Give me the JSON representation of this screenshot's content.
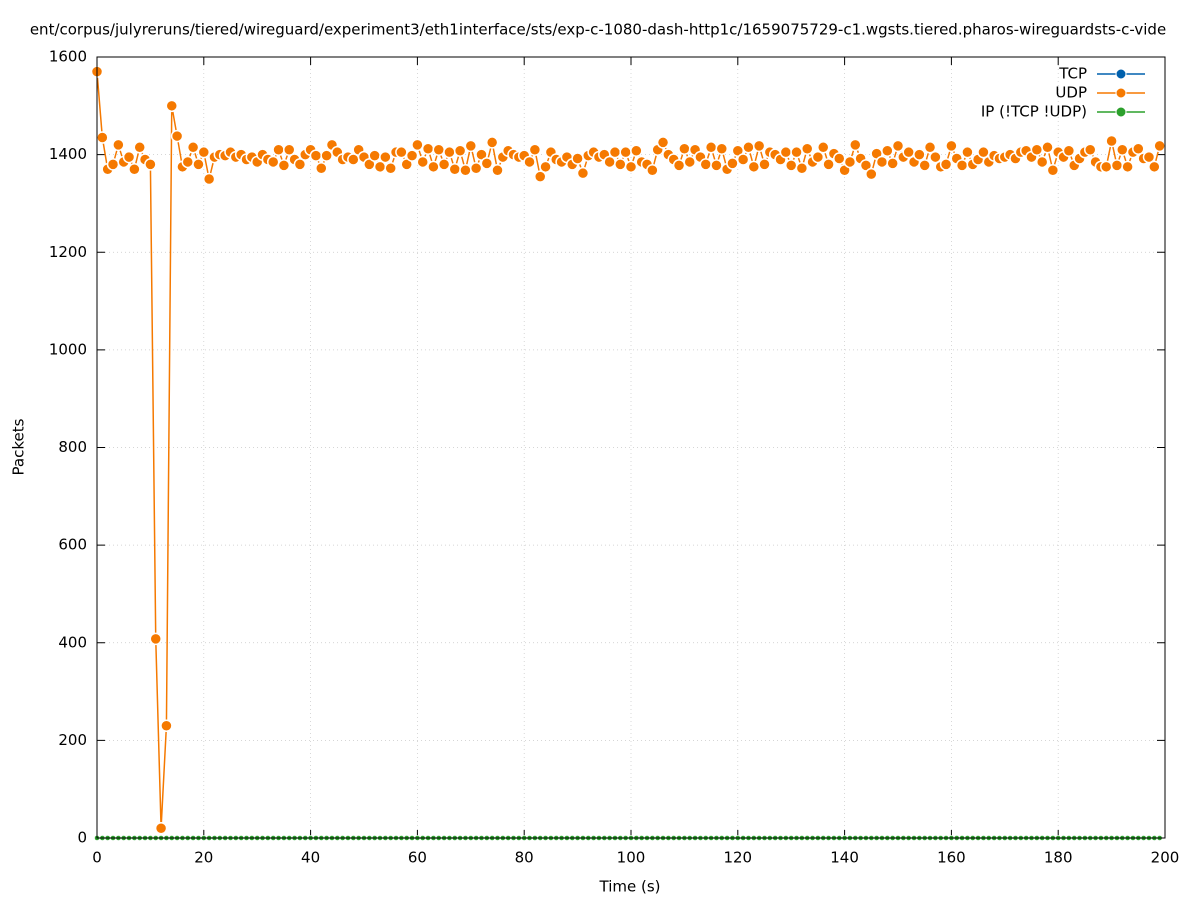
{
  "chart_data": {
    "type": "line",
    "title": "ent/corpus/julyreruns/tiered/wireguard/experiment3/eth1interface/sts/exp-c-1080-dash-http1c/1659075729-c1.wgsts.tiered.pharos-wireguardsts-c-vide",
    "xlabel": "Time (s)",
    "ylabel": "Packets",
    "xlim": [
      0,
      200
    ],
    "xticks": [
      0,
      20,
      40,
      60,
      80,
      100,
      120,
      140,
      160,
      180,
      200
    ],
    "ylim": [
      0,
      1600
    ],
    "yticks": [
      0,
      200,
      400,
      600,
      800,
      1000,
      1200,
      1400,
      1600
    ],
    "grid": true,
    "legend": "top-right",
    "x": [
      0,
      1,
      2,
      3,
      4,
      5,
      6,
      7,
      8,
      9,
      10,
      11,
      12,
      13,
      14,
      15,
      16,
      17,
      18,
      19,
      20,
      21,
      22,
      23,
      24,
      25,
      26,
      27,
      28,
      29,
      30,
      31,
      32,
      33,
      34,
      35,
      36,
      37,
      38,
      39,
      40,
      41,
      42,
      43,
      44,
      45,
      46,
      47,
      48,
      49,
      50,
      51,
      52,
      53,
      54,
      55,
      56,
      57,
      58,
      59,
      60,
      61,
      62,
      63,
      64,
      65,
      66,
      67,
      68,
      69,
      70,
      71,
      72,
      73,
      74,
      75,
      76,
      77,
      78,
      79,
      80,
      81,
      82,
      83,
      84,
      85,
      86,
      87,
      88,
      89,
      90,
      91,
      92,
      93,
      94,
      95,
      96,
      97,
      98,
      99,
      100,
      101,
      102,
      103,
      104,
      105,
      106,
      107,
      108,
      109,
      110,
      111,
      112,
      113,
      114,
      115,
      116,
      117,
      118,
      119,
      120,
      121,
      122,
      123,
      124,
      125,
      126,
      127,
      128,
      129,
      130,
      131,
      132,
      133,
      134,
      135,
      136,
      137,
      138,
      139,
      140,
      141,
      142,
      143,
      144,
      145,
      146,
      147,
      148,
      149,
      150,
      151,
      152,
      153,
      154,
      155,
      156,
      157,
      158,
      159,
      160,
      161,
      162,
      163,
      164,
      165,
      166,
      167,
      168,
      169,
      170,
      171,
      172,
      173,
      174,
      175,
      176,
      177,
      178,
      179,
      180,
      181,
      182,
      183,
      184,
      185,
      186,
      187,
      188,
      189,
      190,
      191,
      192,
      193,
      194,
      195,
      196,
      197,
      198,
      199
    ],
    "series": [
      {
        "name": "TCP",
        "color": "#0060ad",
        "values": [
          0,
          0,
          0,
          0,
          0,
          0,
          0,
          0,
          0,
          0,
          0,
          0,
          0,
          0,
          0,
          0,
          0,
          0,
          0,
          0,
          0,
          0,
          0,
          0,
          0,
          0,
          0,
          0,
          0,
          0,
          0,
          0,
          0,
          0,
          0,
          0,
          0,
          0,
          0,
          0,
          0,
          0,
          0,
          0,
          0,
          0,
          0,
          0,
          0,
          0,
          0,
          0,
          0,
          0,
          0,
          0,
          0,
          0,
          0,
          0,
          0,
          0,
          0,
          0,
          0,
          0,
          0,
          0,
          0,
          0,
          0,
          0,
          0,
          0,
          0,
          0,
          0,
          0,
          0,
          0,
          0,
          0,
          0,
          0,
          0,
          0,
          0,
          0,
          0,
          0,
          0,
          0,
          0,
          0,
          0,
          0,
          0,
          0,
          0,
          0,
          0,
          0,
          0,
          0,
          0,
          0,
          0,
          0,
          0,
          0,
          0,
          0,
          0,
          0,
          0,
          0,
          0,
          0,
          0,
          0,
          0,
          0,
          0,
          0,
          0,
          0,
          0,
          0,
          0,
          0,
          0,
          0,
          0,
          0,
          0,
          0,
          0,
          0,
          0,
          0,
          0,
          0,
          0,
          0,
          0,
          0,
          0,
          0,
          0,
          0,
          0,
          0,
          0,
          0,
          0,
          0,
          0,
          0,
          0,
          0,
          0,
          0,
          0,
          0,
          0,
          0,
          0,
          0,
          0,
          0,
          0,
          0,
          0,
          0,
          0,
          0,
          0,
          0,
          0,
          0,
          0,
          0,
          0,
          0,
          0,
          0,
          0,
          0,
          0,
          0,
          0,
          0,
          0,
          0,
          0,
          0,
          0,
          0,
          0,
          0
        ]
      },
      {
        "name": "UDP",
        "color": "#f57900",
        "values": [
          1570,
          1435,
          1370,
          1380,
          1420,
          1385,
          1395,
          1370,
          1415,
          1390,
          1380,
          408,
          20,
          230,
          1500,
          1438,
          1375,
          1385,
          1415,
          1380,
          1405,
          1350,
          1395,
          1400,
          1398,
          1405,
          1395,
          1400,
          1390,
          1395,
          1385,
          1400,
          1390,
          1385,
          1410,
          1378,
          1410,
          1390,
          1380,
          1400,
          1410,
          1398,
          1372,
          1398,
          1420,
          1405,
          1390,
          1395,
          1390,
          1410,
          1395,
          1380,
          1398,
          1375,
          1395,
          1372,
          1405,
          1405,
          1380,
          1398,
          1420,
          1385,
          1412,
          1375,
          1410,
          1380,
          1405,
          1370,
          1408,
          1368,
          1418,
          1372,
          1400,
          1382,
          1425,
          1368,
          1395,
          1408,
          1400,
          1395,
          1398,
          1385,
          1410,
          1355,
          1375,
          1405,
          1390,
          1385,
          1395,
          1380,
          1392,
          1362,
          1398,
          1405,
          1395,
          1400,
          1385,
          1405,
          1380,
          1405,
          1375,
          1408,
          1385,
          1380,
          1368,
          1410,
          1425,
          1400,
          1390,
          1378,
          1412,
          1385,
          1410,
          1395,
          1380,
          1415,
          1378,
          1412,
          1370,
          1382,
          1408,
          1390,
          1415,
          1375,
          1418,
          1380,
          1405,
          1400,
          1390,
          1405,
          1378,
          1405,
          1372,
          1412,
          1385,
          1395,
          1415,
          1380,
          1402,
          1392,
          1368,
          1385,
          1420,
          1392,
          1378,
          1360,
          1402,
          1385,
          1408,
          1382,
          1418,
          1395,
          1405,
          1385,
          1400,
          1378,
          1415,
          1395,
          1375,
          1380,
          1418,
          1392,
          1378,
          1405,
          1380,
          1390,
          1405,
          1385,
          1398,
          1392,
          1395,
          1400,
          1392,
          1405,
          1408,
          1395,
          1410,
          1385,
          1415,
          1368,
          1405,
          1395,
          1408,
          1378,
          1392,
          1405,
          1410,
          1385,
          1375,
          1375,
          1428,
          1378,
          1410,
          1375,
          1405,
          1412,
          1392,
          1395,
          1375,
          1418
        ]
      },
      {
        "name": "IP (!TCP  !UDP)",
        "color": "#2ca02c",
        "values": [
          0,
          0,
          0,
          0,
          0,
          0,
          0,
          0,
          0,
          0,
          0,
          0,
          0,
          0,
          0,
          0,
          0,
          0,
          0,
          0,
          0,
          0,
          0,
          0,
          0,
          0,
          0,
          0,
          0,
          0,
          0,
          0,
          0,
          0,
          0,
          0,
          0,
          0,
          0,
          0,
          0,
          0,
          0,
          0,
          0,
          0,
          0,
          0,
          0,
          0,
          0,
          0,
          0,
          0,
          0,
          0,
          0,
          0,
          0,
          0,
          0,
          0,
          0,
          0,
          0,
          0,
          0,
          0,
          0,
          0,
          0,
          0,
          0,
          0,
          0,
          0,
          0,
          0,
          0,
          0,
          0,
          0,
          0,
          0,
          0,
          0,
          0,
          0,
          0,
          0,
          0,
          0,
          0,
          0,
          0,
          0,
          0,
          0,
          0,
          0,
          0,
          0,
          0,
          0,
          0,
          0,
          0,
          0,
          0,
          0,
          0,
          0,
          0,
          0,
          0,
          0,
          0,
          0,
          0,
          0,
          0,
          0,
          0,
          0,
          0,
          0,
          0,
          0,
          0,
          0,
          0,
          0,
          0,
          0,
          0,
          0,
          0,
          0,
          0,
          0,
          0,
          0,
          0,
          0,
          0,
          0,
          0,
          0,
          0,
          0,
          0,
          0,
          0,
          0,
          0,
          0,
          0,
          0,
          0,
          0,
          0,
          0,
          0,
          0,
          0,
          0,
          0,
          0,
          0,
          0,
          0,
          0,
          0,
          0,
          0,
          0,
          0,
          0,
          0,
          0,
          0,
          0,
          0,
          0,
          0,
          0,
          0,
          0,
          0,
          0,
          0,
          0,
          0,
          0,
          0,
          0,
          0,
          0,
          0,
          0
        ]
      }
    ]
  }
}
